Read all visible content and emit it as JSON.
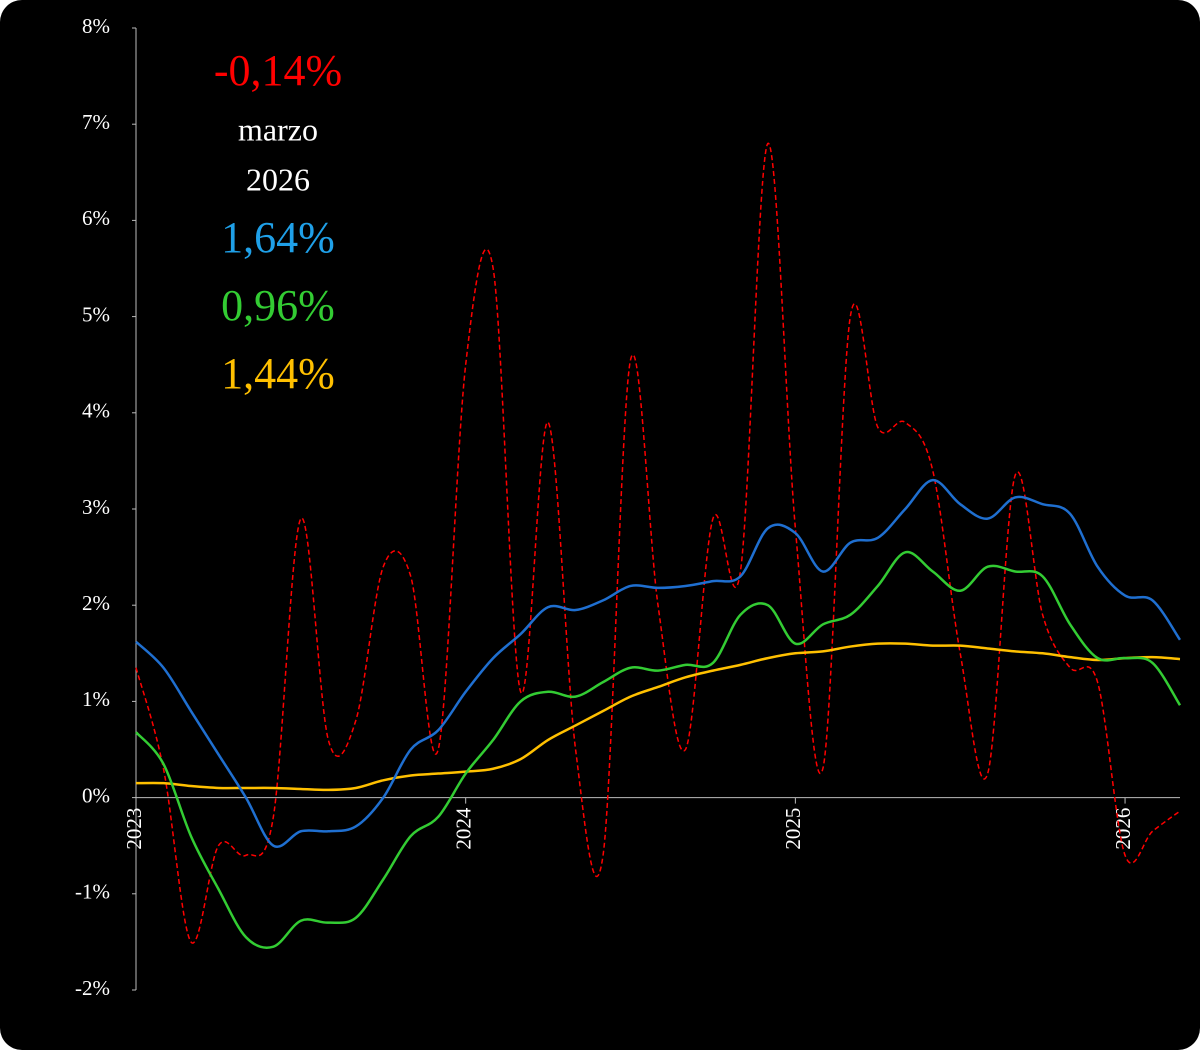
{
  "chart_data": {
    "type": "line",
    "categories": [
      "2023",
      null,
      null,
      null,
      null,
      null,
      null,
      null,
      null,
      null,
      null,
      null,
      "2024",
      null,
      null,
      null,
      null,
      null,
      null,
      null,
      null,
      null,
      null,
      null,
      "2025",
      null,
      null,
      null,
      null,
      null,
      null,
      null,
      null,
      null,
      null,
      null,
      "2026",
      null,
      null
    ],
    "series": [
      {
        "color": "#ff0000",
        "style": "dashed",
        "values": [
          1.35,
          0.3,
          -1.5,
          -0.5,
          -0.6,
          -0.2,
          2.9,
          0.6,
          0.8,
          2.4,
          2.3,
          0.5,
          4.5,
          5.5,
          1.1,
          3.9,
          0.5,
          -0.6,
          4.55,
          2.0,
          0.5,
          2.9,
          2.35,
          6.8,
          2.8,
          0.3,
          5.0,
          3.85,
          3.9,
          3.4,
          1.5,
          0.25,
          3.35,
          1.9,
          1.35,
          1.2,
          -0.6,
          -0.35,
          -0.14
        ]
      },
      {
        "color": "#1f6fd0",
        "style": "solid",
        "values": [
          1.62,
          1.35,
          0.9,
          0.45,
          0.0,
          -0.5,
          -0.35,
          -0.35,
          -0.3,
          0.0,
          0.5,
          0.7,
          1.1,
          1.45,
          1.7,
          1.98,
          1.95,
          2.05,
          2.2,
          2.18,
          2.2,
          2.25,
          2.3,
          2.8,
          2.75,
          2.35,
          2.65,
          2.7,
          3.0,
          3.3,
          3.05,
          2.9,
          3.12,
          3.05,
          2.95,
          2.4,
          2.1,
          2.05,
          1.64
        ]
      },
      {
        "color": "#33cc33",
        "style": "solid",
        "values": [
          0.68,
          0.35,
          -0.4,
          -0.95,
          -1.45,
          -1.55,
          -1.28,
          -1.3,
          -1.25,
          -0.85,
          -0.4,
          -0.2,
          0.25,
          0.6,
          1.0,
          1.1,
          1.05,
          1.2,
          1.35,
          1.32,
          1.38,
          1.4,
          1.9,
          2.0,
          1.6,
          1.8,
          1.9,
          2.2,
          2.55,
          2.35,
          2.15,
          2.4,
          2.35,
          2.3,
          1.8,
          1.45,
          1.45,
          1.4,
          0.96
        ]
      },
      {
        "color": "#ffc000",
        "style": "solid",
        "values": [
          0.15,
          0.15,
          0.12,
          0.1,
          0.1,
          0.1,
          0.09,
          0.08,
          0.1,
          0.18,
          0.23,
          0.25,
          0.27,
          0.3,
          0.4,
          0.6,
          0.75,
          0.9,
          1.05,
          1.15,
          1.25,
          1.32,
          1.38,
          1.45,
          1.5,
          1.52,
          1.57,
          1.6,
          1.6,
          1.58,
          1.58,
          1.55,
          1.52,
          1.5,
          1.46,
          1.43,
          1.45,
          1.46,
          1.44
        ]
      }
    ],
    "annotations": [
      {
        "text": "-0,14%",
        "color": "#ff0000"
      },
      {
        "text": "marzo",
        "color": "#ffffff"
      },
      {
        "text": "2026",
        "color": "#ffffff"
      },
      {
        "text": "1,64%",
        "color": "#1fa0e8"
      },
      {
        "text": "0,96%",
        "color": "#33cc33"
      },
      {
        "text": "1,44%",
        "color": "#ffc000"
      }
    ],
    "ylim": [
      -2,
      8
    ],
    "yticks": [
      {
        "value": -2,
        "label": "-2%"
      },
      {
        "value": -1,
        "label": "-1%"
      },
      {
        "value": 0,
        "label": "0%"
      },
      {
        "value": 1,
        "label": "1%"
      },
      {
        "value": 2,
        "label": "2%"
      },
      {
        "value": 3,
        "label": "3%"
      },
      {
        "value": 4,
        "label": "4%"
      },
      {
        "value": 5,
        "label": "5%"
      },
      {
        "value": 6,
        "label": "6%"
      },
      {
        "value": 7,
        "label": "7%"
      },
      {
        "value": 8,
        "label": "8%"
      }
    ],
    "grid": false
  }
}
